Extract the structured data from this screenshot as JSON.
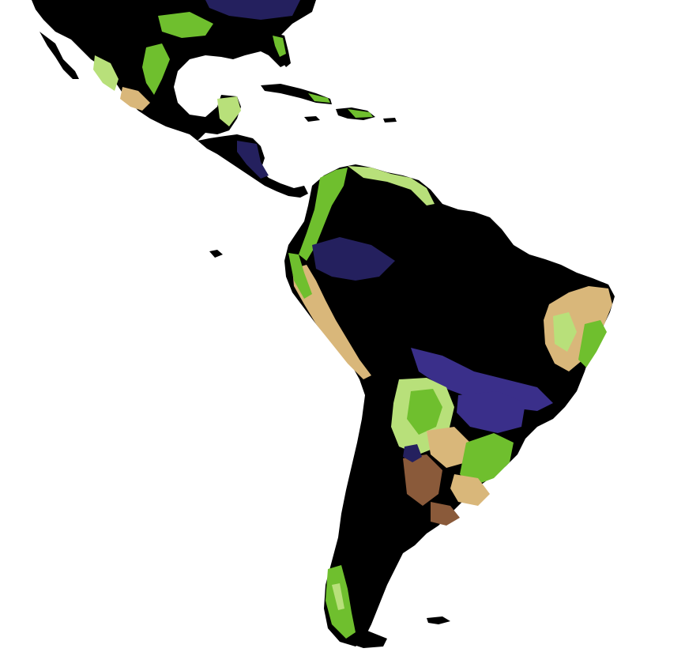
{
  "map": {
    "region": "Americas",
    "colors": {
      "ocean": "#ffffff",
      "land_base": "#000000",
      "vegetation_green": "#6fbf2e",
      "vegetation_light": "#b8e07a",
      "vegetation_tan": "#d9b77a",
      "vegetation_brown": "#8a5a3a",
      "vegetation_navy": "#24205e",
      "vegetation_indigo": "#3a2f8a"
    }
  }
}
